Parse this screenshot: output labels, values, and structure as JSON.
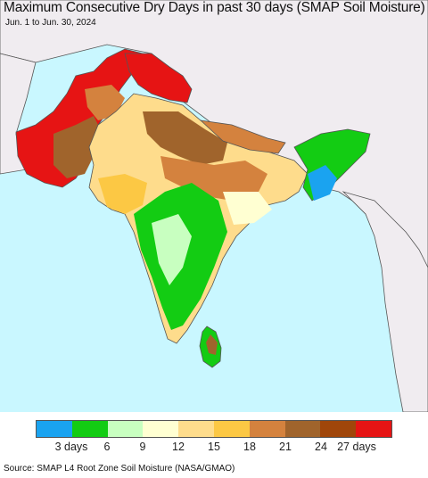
{
  "title": "Maximum Consecutive Dry Days in past 30 days (SMAP Soil Moisture)",
  "subtitle": "Jun. 1 to Jun. 30, 2024",
  "source": "Source: SMAP L4 Root Zone Soil Moisture (NASA/GMAO)",
  "colors": {
    "ocean": "#c9f7ff",
    "neighbor_land": "#f0ecf0",
    "border": "#555555"
  },
  "legend": {
    "colors": [
      "#1aa3f0",
      "#13cc13",
      "#c8ffc0",
      "#ffffd2",
      "#fedc8c",
      "#fcc844",
      "#d4823e",
      "#a0642c",
      "#a0460a",
      "#e61414"
    ],
    "labels": [
      "3 days",
      "6",
      "9",
      "12",
      "15",
      "18",
      "21",
      "24",
      "27 days"
    ]
  }
}
